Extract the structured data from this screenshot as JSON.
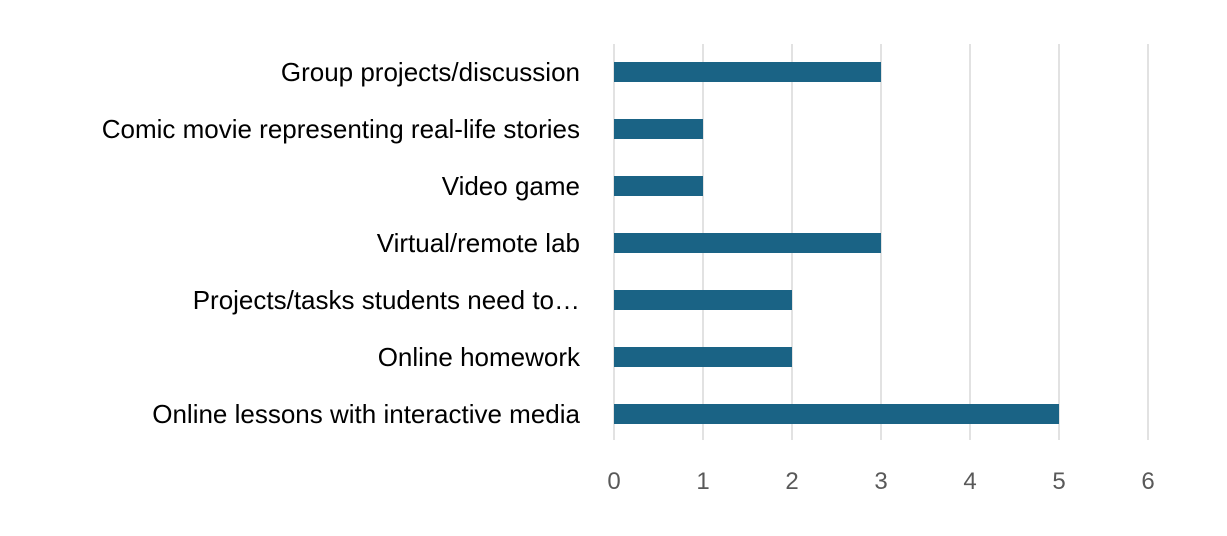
{
  "chart_data": {
    "type": "bar",
    "orientation": "horizontal",
    "categories": [
      "Group projects/discussion",
      "Comic movie representing real-life stories",
      "Video game",
      "Virtual/remote lab",
      "Projects/tasks students need to…",
      "Online homework",
      "Online lessons with interactive media"
    ],
    "values": [
      3,
      1,
      1,
      3,
      2,
      2,
      5
    ],
    "xlim": [
      0,
      6
    ],
    "xticks": [
      "0",
      "1",
      "2",
      "3",
      "4",
      "5",
      "6"
    ],
    "grid": "vertical",
    "legend": "none",
    "bar_color": "#1a6385",
    "grid_color": "#d9d9d9",
    "title": "",
    "xlabel": "",
    "ylabel": ""
  }
}
